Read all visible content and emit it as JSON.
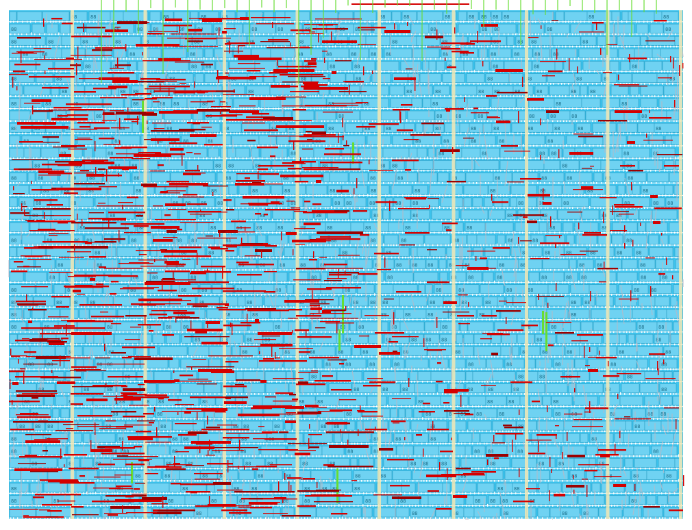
{
  "layout": {
    "kind": "vlsi-standard-cell-placement-and-routing",
    "colors": {
      "background": "#ffffff",
      "core_fill": "#3dc4ee",
      "cell_outline": "#2a9ec4",
      "cell_interior": "#6fd2f2",
      "pin_label": "#1c6f8a",
      "metal_route": "#d40000",
      "metal_route_dark": "#9c0000",
      "via_route": "#b9b9c6",
      "power_strap": "#f3e7b4",
      "io_pin": "#66dd33",
      "row_gap": "#ffffff"
    },
    "core_rows": 41,
    "io_pins_top": 46,
    "power_straps": 9,
    "cell_label_glyph": "88"
  }
}
